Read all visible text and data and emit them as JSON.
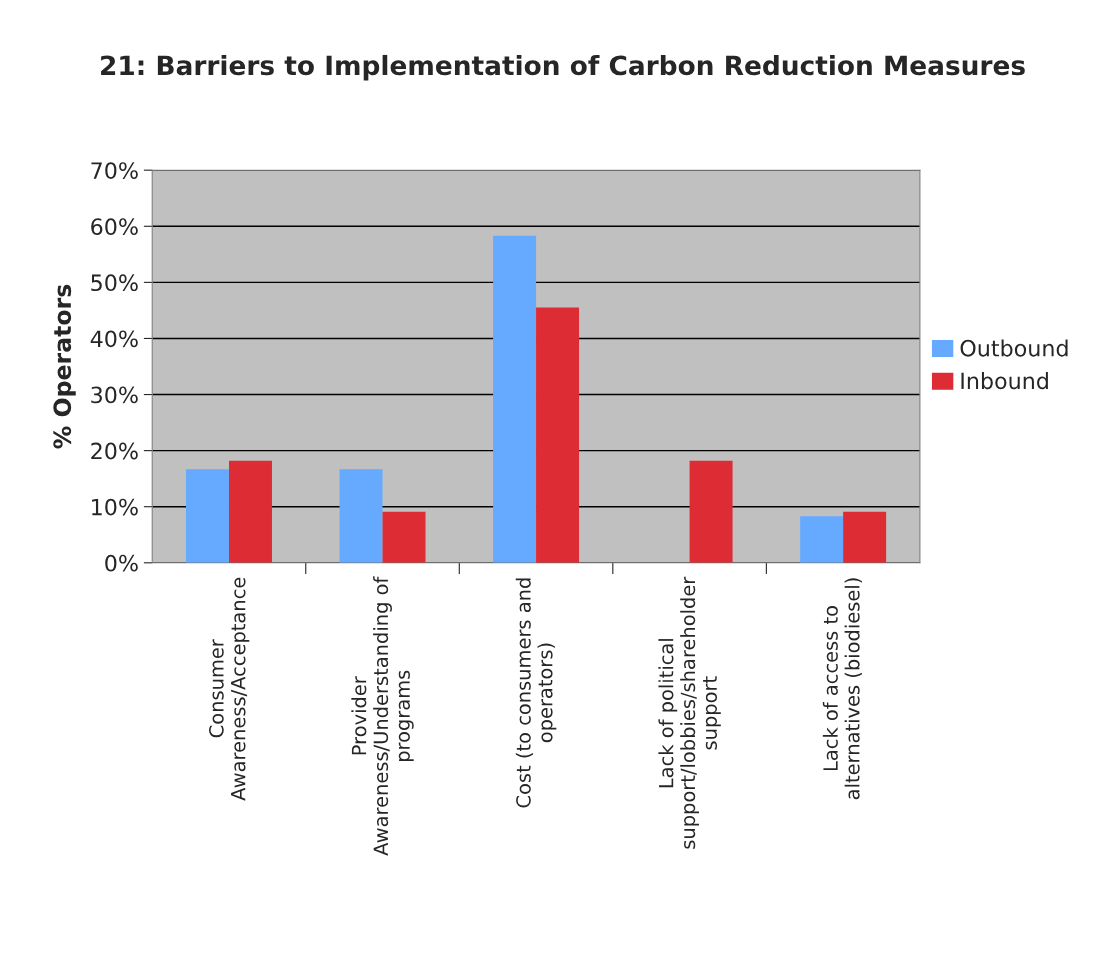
{
  "chart_data": {
    "type": "bar",
    "title": "21: Barriers to Implementation of Carbon Reduction Measures",
    "ylabel": "% Operators",
    "categories": [
      "Consumer\nAwareness/Acceptance",
      "Provider\nAwareness/Understanding of\nprograms",
      "Cost (to consumers and\noperators)",
      "Lack of political\nsupport/lobbies/shareholder\nsupport",
      "Lack of access to\nalternatives (biodiesel)"
    ],
    "series": [
      {
        "name": "Outbound",
        "color": "#66aaff",
        "values": [
          16.7,
          16.7,
          58.3,
          null,
          8.3
        ]
      },
      {
        "name": "Inbound",
        "color": "#dd2c34",
        "values": [
          18.2,
          9.1,
          45.5,
          18.2,
          9.1
        ]
      }
    ],
    "ylim": [
      0,
      70
    ],
    "yticks": [
      {
        "value": 0,
        "label": "0%"
      },
      {
        "value": 10,
        "label": "10%"
      },
      {
        "value": 20,
        "label": "20%"
      },
      {
        "value": 30,
        "label": "30%"
      },
      {
        "value": 40,
        "label": "40%"
      },
      {
        "value": 50,
        "label": "50%"
      },
      {
        "value": 60,
        "label": "60%"
      },
      {
        "value": 70,
        "label": "70%"
      }
    ],
    "grid": "y",
    "legend": "right"
  }
}
